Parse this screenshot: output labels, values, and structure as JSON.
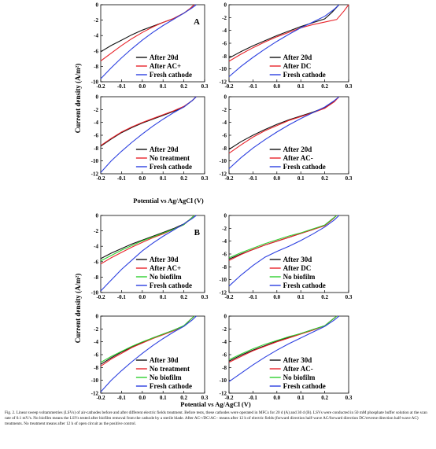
{
  "figure": {
    "ylabel": "Current density (A/m²)",
    "xlabel": "Potential vs Ag/AgCl (V)",
    "caption": "Fig. 2. Linear sweep voltammetries (LSVs) of air-cathodes before and after different electric fields treatment. Before tests, these cathodes were operated in MFCs for 20 d (A) and 30 d (B). LSVs were conducted in 50 mM phosphate buffer solution at the scan rate of 0.1 mV/s. No biofilm means the LSVs tested after biofilm removal from the cathode by a sterile blade. After AC+/DC/AC− means after 12 h of electric fields (forward direction half-wave AC/forward direction DC/reverse direction half-wave AC) treatments. No treatment means after 12 h of open circuit as the positive control."
  },
  "colors": {
    "black": "#111111",
    "red": "#e8232a",
    "green": "#2fd02f",
    "blue": "#2b3fe0"
  },
  "chart_data": [
    {
      "type": "line",
      "panel_label": "A",
      "xlim": [
        -0.2,
        0.3
      ],
      "ylim": [
        -10,
        0
      ],
      "xticks": [
        "-0.2",
        "-0.1",
        "0.0",
        "0.1",
        "0.2",
        "0.3"
      ],
      "yticks": [
        "0",
        "-2",
        "-4",
        "-6",
        "-8",
        "-10"
      ],
      "series": [
        {
          "name": "After 20d",
          "color": "black",
          "x": [
            -0.2,
            -0.15,
            -0.1,
            -0.05,
            0.0,
            0.05,
            0.1,
            0.15,
            0.2,
            0.23,
            0.25
          ],
          "y": [
            -6.1,
            -5.3,
            -4.6,
            -3.9,
            -3.3,
            -2.8,
            -2.3,
            -1.8,
            -1.1,
            -0.5,
            0
          ]
        },
        {
          "name": "After AC+",
          "color": "red",
          "x": [
            -0.2,
            -0.15,
            -0.1,
            -0.05,
            0.0,
            0.05,
            0.1,
            0.15,
            0.2,
            0.23,
            0.25
          ],
          "y": [
            -7.3,
            -6.3,
            -5.3,
            -4.4,
            -3.6,
            -2.9,
            -2.3,
            -1.8,
            -1.1,
            -0.5,
            0
          ]
        },
        {
          "name": "Fresh cathode",
          "color": "blue",
          "x": [
            -0.2,
            -0.15,
            -0.1,
            -0.05,
            0.0,
            0.05,
            0.1,
            0.15,
            0.2,
            0.24,
            0.26
          ],
          "y": [
            -9.6,
            -8.2,
            -6.9,
            -5.7,
            -4.6,
            -3.6,
            -2.7,
            -1.9,
            -1.1,
            -0.4,
            0
          ]
        }
      ]
    },
    {
      "type": "line",
      "xlim": [
        -0.2,
        0.3
      ],
      "ylim": [
        -12,
        0
      ],
      "xticks": [
        "-0.2",
        "-0.1",
        "0.0",
        "0.1",
        "0.2",
        "0.3"
      ],
      "yticks": [
        "0",
        "-2",
        "-4",
        "-6",
        "-8",
        "-10",
        "-12"
      ],
      "series": [
        {
          "name": "After 20d",
          "color": "black",
          "x": [
            -0.2,
            -0.15,
            -0.1,
            -0.05,
            0.0,
            0.05,
            0.1,
            0.15,
            0.2,
            0.23,
            0.26
          ],
          "y": [
            -8.3,
            -7.3,
            -6.4,
            -5.6,
            -4.8,
            -4.1,
            -3.4,
            -2.8,
            -2.2,
            -1.2,
            0
          ]
        },
        {
          "name": "After DC",
          "color": "red",
          "x": [
            -0.2,
            -0.15,
            -0.1,
            -0.05,
            0.0,
            0.05,
            0.1,
            0.15,
            0.2,
            0.25,
            0.28,
            0.3
          ],
          "y": [
            -8.8,
            -7.7,
            -6.7,
            -5.8,
            -5.0,
            -4.3,
            -3.6,
            -3.1,
            -2.7,
            -2.3,
            -1.0,
            0
          ]
        },
        {
          "name": "Fresh cathode",
          "color": "blue",
          "x": [
            -0.2,
            -0.15,
            -0.1,
            -0.05,
            0.0,
            0.05,
            0.1,
            0.15,
            0.2,
            0.24,
            0.26
          ],
          "y": [
            -11.2,
            -9.6,
            -8.2,
            -6.9,
            -5.7,
            -4.6,
            -3.6,
            -2.7,
            -1.8,
            -0.7,
            0
          ]
        }
      ]
    },
    {
      "type": "line",
      "xlim": [
        -0.2,
        0.3
      ],
      "ylim": [
        -12,
        0
      ],
      "xticks": [
        "-0.2",
        "-0.1",
        "0.0",
        "0.1",
        "0.2",
        "0.3"
      ],
      "yticks": [
        "0",
        "-2",
        "-4",
        "-6",
        "-8",
        "-10",
        "-12"
      ],
      "series": [
        {
          "name": "After 20d",
          "color": "black",
          "x": [
            -0.2,
            -0.15,
            -0.1,
            -0.05,
            0.0,
            0.05,
            0.1,
            0.15,
            0.2,
            0.24,
            0.26
          ],
          "y": [
            -7.7,
            -6.6,
            -5.6,
            -4.8,
            -4.1,
            -3.5,
            -2.9,
            -2.3,
            -1.6,
            -0.6,
            0
          ]
        },
        {
          "name": "No treatment",
          "color": "red",
          "x": [
            -0.2,
            -0.15,
            -0.1,
            -0.05,
            0.0,
            0.05,
            0.1,
            0.15,
            0.2,
            0.24,
            0.26
          ],
          "y": [
            -7.6,
            -6.5,
            -5.5,
            -4.7,
            -4.0,
            -3.4,
            -2.8,
            -2.2,
            -1.5,
            -0.6,
            0
          ]
        },
        {
          "name": "Fresh cathode",
          "color": "blue",
          "x": [
            -0.2,
            -0.15,
            -0.1,
            -0.05,
            0.0,
            0.05,
            0.1,
            0.15,
            0.2,
            0.24,
            0.26
          ],
          "y": [
            -11.8,
            -10.0,
            -8.5,
            -7.1,
            -5.8,
            -4.6,
            -3.5,
            -2.5,
            -1.6,
            -0.6,
            0
          ]
        }
      ]
    },
    {
      "type": "line",
      "xlim": [
        -0.2,
        0.3
      ],
      "ylim": [
        -12,
        0
      ],
      "xticks": [
        "-0.2",
        "-0.1",
        "0.0",
        "0.1",
        "0.2",
        "0.3"
      ],
      "yticks": [
        "0",
        "-2",
        "-4",
        "-6",
        "-8",
        "-10",
        "-12"
      ],
      "series": [
        {
          "name": "After 20d",
          "color": "black",
          "x": [
            -0.2,
            -0.15,
            -0.1,
            -0.05,
            0.0,
            0.05,
            0.1,
            0.15,
            0.2,
            0.24,
            0.26
          ],
          "y": [
            -8.2,
            -7.0,
            -6.0,
            -5.1,
            -4.3,
            -3.6,
            -3.0,
            -2.4,
            -1.7,
            -0.7,
            0
          ]
        },
        {
          "name": "After AC-",
          "color": "red",
          "x": [
            -0.2,
            -0.15,
            -0.1,
            -0.05,
            0.0,
            0.05,
            0.1,
            0.15,
            0.2,
            0.24,
            0.26
          ],
          "y": [
            -8.8,
            -7.5,
            -6.3,
            -5.3,
            -4.5,
            -3.7,
            -3.1,
            -2.5,
            -1.8,
            -0.8,
            0
          ]
        },
        {
          "name": "Fresh cathode",
          "color": "blue",
          "x": [
            -0.2,
            -0.15,
            -0.1,
            -0.05,
            0.0,
            0.05,
            0.1,
            0.15,
            0.2,
            0.24,
            0.26
          ],
          "y": [
            -11.2,
            -9.5,
            -8.0,
            -6.7,
            -5.5,
            -4.4,
            -3.4,
            -2.5,
            -1.6,
            -0.6,
            0
          ]
        }
      ]
    },
    {
      "type": "line",
      "panel_label": "B",
      "xlim": [
        -0.2,
        0.3
      ],
      "ylim": [
        -10,
        0
      ],
      "xticks": [
        "-0.2",
        "-0.1",
        "0.0",
        "0.1",
        "0.2",
        "0.3"
      ],
      "yticks": [
        "0",
        "-2",
        "-4",
        "-6",
        "-8",
        "-10"
      ],
      "series": [
        {
          "name": "After 30d",
          "color": "black",
          "x": [
            -0.2,
            -0.15,
            -0.1,
            -0.05,
            0.0,
            0.05,
            0.1,
            0.15,
            0.2,
            0.23,
            0.25
          ],
          "y": [
            -5.6,
            -4.9,
            -4.3,
            -3.7,
            -3.2,
            -2.7,
            -2.2,
            -1.7,
            -1.1,
            -0.5,
            0
          ]
        },
        {
          "name": "After AC+",
          "color": "red",
          "x": [
            -0.2,
            -0.15,
            -0.1,
            -0.05,
            0.0,
            0.05,
            0.1,
            0.15,
            0.2,
            0.23,
            0.25
          ],
          "y": [
            -6.3,
            -5.5,
            -4.8,
            -4.1,
            -3.5,
            -2.9,
            -2.4,
            -1.8,
            -1.2,
            -0.5,
            0
          ]
        },
        {
          "name": "No biofilm",
          "color": "green",
          "x": [
            -0.2,
            -0.15,
            -0.1,
            -0.05,
            0.0,
            0.05,
            0.1,
            0.15,
            0.2,
            0.23,
            0.25
          ],
          "y": [
            -5.9,
            -5.2,
            -4.5,
            -3.9,
            -3.3,
            -2.8,
            -2.3,
            -1.8,
            -1.2,
            -0.5,
            0
          ]
        },
        {
          "name": "Fresh cathode",
          "color": "blue",
          "x": [
            -0.2,
            -0.15,
            -0.1,
            -0.05,
            0.0,
            0.05,
            0.1,
            0.15,
            0.2,
            0.24,
            0.26
          ],
          "y": [
            -9.8,
            -8.4,
            -7.0,
            -5.8,
            -4.6,
            -3.6,
            -2.7,
            -1.9,
            -1.1,
            -0.4,
            0
          ]
        }
      ]
    },
    {
      "type": "line",
      "xlim": [
        -0.2,
        0.3
      ],
      "ylim": [
        -12,
        0
      ],
      "xticks": [
        "-0.2",
        "-0.1",
        "0.0",
        "0.1",
        "0.2",
        "0.3"
      ],
      "yticks": [
        "0",
        "-2",
        "-4",
        "-6",
        "-8",
        "-10",
        "-12"
      ],
      "series": [
        {
          "name": "After 30d",
          "color": "black",
          "x": [
            -0.2,
            -0.15,
            -0.1,
            -0.05,
            0.0,
            0.05,
            0.1,
            0.15,
            0.2,
            0.23,
            0.25
          ],
          "y": [
            -6.8,
            -6.0,
            -5.3,
            -4.6,
            -4.0,
            -3.4,
            -2.8,
            -2.2,
            -1.5,
            -0.6,
            0
          ]
        },
        {
          "name": "After DC",
          "color": "red",
          "x": [
            -0.2,
            -0.15,
            -0.1,
            -0.05,
            0.0,
            0.05,
            0.1,
            0.15,
            0.2,
            0.23,
            0.25
          ],
          "y": [
            -7.0,
            -6.1,
            -5.3,
            -4.6,
            -4.0,
            -3.4,
            -2.8,
            -2.2,
            -1.6,
            -0.7,
            0
          ]
        },
        {
          "name": "No biofilm",
          "color": "green",
          "x": [
            -0.2,
            -0.15,
            -0.1,
            -0.05,
            0.0,
            0.05,
            0.1,
            0.15,
            0.2,
            0.23,
            0.25
          ],
          "y": [
            -6.6,
            -5.8,
            -5.1,
            -4.4,
            -3.8,
            -3.2,
            -2.7,
            -2.1,
            -1.5,
            -0.6,
            0
          ]
        },
        {
          "name": "Fresh cathode",
          "color": "blue",
          "x": [
            -0.2,
            -0.15,
            -0.1,
            -0.05,
            0.0,
            0.05,
            0.1,
            0.15,
            0.2,
            0.24,
            0.26
          ],
          "y": [
            -11.0,
            -9.3,
            -7.8,
            -6.5,
            -5.6,
            -4.8,
            -3.9,
            -2.9,
            -1.8,
            -0.7,
            0
          ]
        }
      ]
    },
    {
      "type": "line",
      "xlim": [
        -0.2,
        0.3
      ],
      "ylim": [
        -12,
        0
      ],
      "xticks": [
        "-0.2",
        "-0.1",
        "0.0",
        "0.1",
        "0.2",
        "0.3"
      ],
      "yticks": [
        "0",
        "-2",
        "-4",
        "-6",
        "-8",
        "-10",
        "-12"
      ],
      "series": [
        {
          "name": "After 30d",
          "color": "black",
          "x": [
            -0.2,
            -0.15,
            -0.1,
            -0.05,
            0.0,
            0.05,
            0.1,
            0.15,
            0.2,
            0.23,
            0.25
          ],
          "y": [
            -7.5,
            -6.5,
            -5.6,
            -4.8,
            -4.1,
            -3.4,
            -2.8,
            -2.2,
            -1.5,
            -0.6,
            0
          ]
        },
        {
          "name": "No treatment",
          "color": "red",
          "x": [
            -0.2,
            -0.15,
            -0.1,
            -0.05,
            0.0,
            0.05,
            0.1,
            0.15,
            0.2,
            0.23,
            0.25
          ],
          "y": [
            -7.8,
            -6.7,
            -5.8,
            -4.9,
            -4.2,
            -3.5,
            -2.9,
            -2.3,
            -1.6,
            -0.6,
            0
          ]
        },
        {
          "name": "No biofilm",
          "color": "green",
          "x": [
            -0.2,
            -0.15,
            -0.1,
            -0.05,
            0.0,
            0.05,
            0.1,
            0.15,
            0.2,
            0.23,
            0.25
          ],
          "y": [
            -7.2,
            -6.3,
            -5.5,
            -4.7,
            -4.0,
            -3.4,
            -2.8,
            -2.2,
            -1.5,
            -0.6,
            0
          ]
        },
        {
          "name": "Fresh cathode",
          "color": "blue",
          "x": [
            -0.2,
            -0.15,
            -0.1,
            -0.05,
            0.0,
            0.05,
            0.1,
            0.15,
            0.2,
            0.24,
            0.26
          ],
          "y": [
            -11.8,
            -10.0,
            -8.5,
            -7.1,
            -5.8,
            -4.6,
            -3.5,
            -2.5,
            -1.6,
            -0.6,
            0
          ]
        }
      ]
    },
    {
      "type": "line",
      "xlim": [
        -0.2,
        0.3
      ],
      "ylim": [
        -12,
        0
      ],
      "xticks": [
        "-0.2",
        "-0.1",
        "0.0",
        "0.1",
        "0.2",
        "0.3"
      ],
      "yticks": [
        "0",
        "-2",
        "-4",
        "-6",
        "-8",
        "-10",
        "-12"
      ],
      "series": [
        {
          "name": "After 30d",
          "color": "black",
          "x": [
            -0.2,
            -0.15,
            -0.1,
            -0.05,
            0.0,
            0.05,
            0.1,
            0.15,
            0.2,
            0.23,
            0.25
          ],
          "y": [
            -7.0,
            -6.1,
            -5.3,
            -4.6,
            -3.9,
            -3.3,
            -2.7,
            -2.1,
            -1.5,
            -0.6,
            0
          ]
        },
        {
          "name": "After AC-",
          "color": "red",
          "x": [
            -0.2,
            -0.15,
            -0.1,
            -0.05,
            0.0,
            0.05,
            0.1,
            0.15,
            0.2,
            0.23,
            0.25
          ],
          "y": [
            -7.2,
            -6.3,
            -5.4,
            -4.7,
            -4.0,
            -3.4,
            -2.8,
            -2.2,
            -1.5,
            -0.6,
            0
          ]
        },
        {
          "name": "No biofilm",
          "color": "green",
          "x": [
            -0.2,
            -0.15,
            -0.1,
            -0.05,
            0.0,
            0.05,
            0.1,
            0.15,
            0.2,
            0.23,
            0.25
          ],
          "y": [
            -6.8,
            -5.9,
            -5.1,
            -4.4,
            -3.8,
            -3.2,
            -2.7,
            -2.1,
            -1.5,
            -0.6,
            0
          ]
        },
        {
          "name": "Fresh cathode",
          "color": "blue",
          "x": [
            -0.2,
            -0.15,
            -0.1,
            -0.05,
            0.0,
            0.05,
            0.1,
            0.15,
            0.2,
            0.24,
            0.26
          ],
          "y": [
            -10.2,
            -8.9,
            -7.6,
            -6.4,
            -5.3,
            -4.3,
            -3.4,
            -2.5,
            -1.6,
            -0.6,
            0
          ]
        }
      ]
    }
  ]
}
